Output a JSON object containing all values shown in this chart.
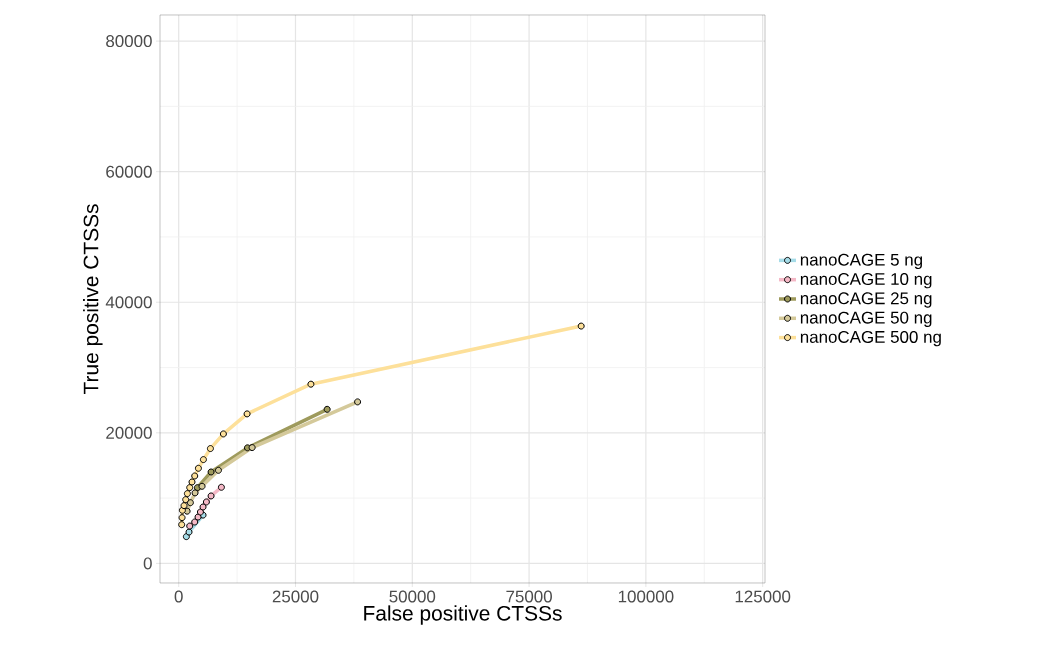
{
  "chart_data": {
    "type": "line",
    "xlabel": "False positive CTSSs",
    "ylabel": "True positive CTSSs",
    "xlim": [
      -4000,
      125500
    ],
    "ylim": [
      -3000,
      84000
    ],
    "xticks": [
      0,
      25000,
      50000,
      75000,
      100000,
      125000
    ],
    "yticks": [
      0,
      20000,
      40000,
      60000,
      80000
    ],
    "grid": true,
    "legend": "right",
    "marker": "circle",
    "line_style": "solid",
    "series": [
      {
        "name": "nanoCAGE 5 ng",
        "color": "#a6dce8",
        "x": [
          1640,
          2210,
          5210
        ],
        "values": [
          4100,
          4800,
          7400
        ]
      },
      {
        "name": "nanoCAGE 10 ng",
        "color": "#f4b8c6",
        "x": [
          2360,
          3430,
          4140,
          4650,
          5210,
          5930,
          6930,
          9140
        ],
        "values": [
          5720,
          6340,
          7100,
          7870,
          8640,
          9410,
          10330,
          11660
        ]
      },
      {
        "name": "nanoCAGE 25 ng",
        "color": "#9e9a5c",
        "x": [
          4000,
          6930,
          14720,
          31780
        ],
        "values": [
          11600,
          14000,
          17700,
          23600
        ]
      },
      {
        "name": "nanoCAGE 50 ng",
        "color": "#d4c99a",
        "x": [
          1800,
          2500,
          3500,
          5000,
          8510,
          15720,
          38290
        ],
        "values": [
          8000,
          9300,
          10800,
          11810,
          14260,
          17740,
          24740
        ]
      },
      {
        "name": "nanoCAGE 500 ng",
        "color": "#fde09a",
        "x": [
          640,
          720,
          790,
          1140,
          1500,
          1860,
          2360,
          2850,
          3430,
          4220,
          5290,
          6790,
          9570,
          14640,
          28300,
          86150
        ],
        "values": [
          5930,
          7010,
          8130,
          8850,
          9770,
          10690,
          11610,
          12470,
          13390,
          14570,
          15900,
          17590,
          19830,
          22900,
          27450,
          36350
        ]
      }
    ]
  }
}
